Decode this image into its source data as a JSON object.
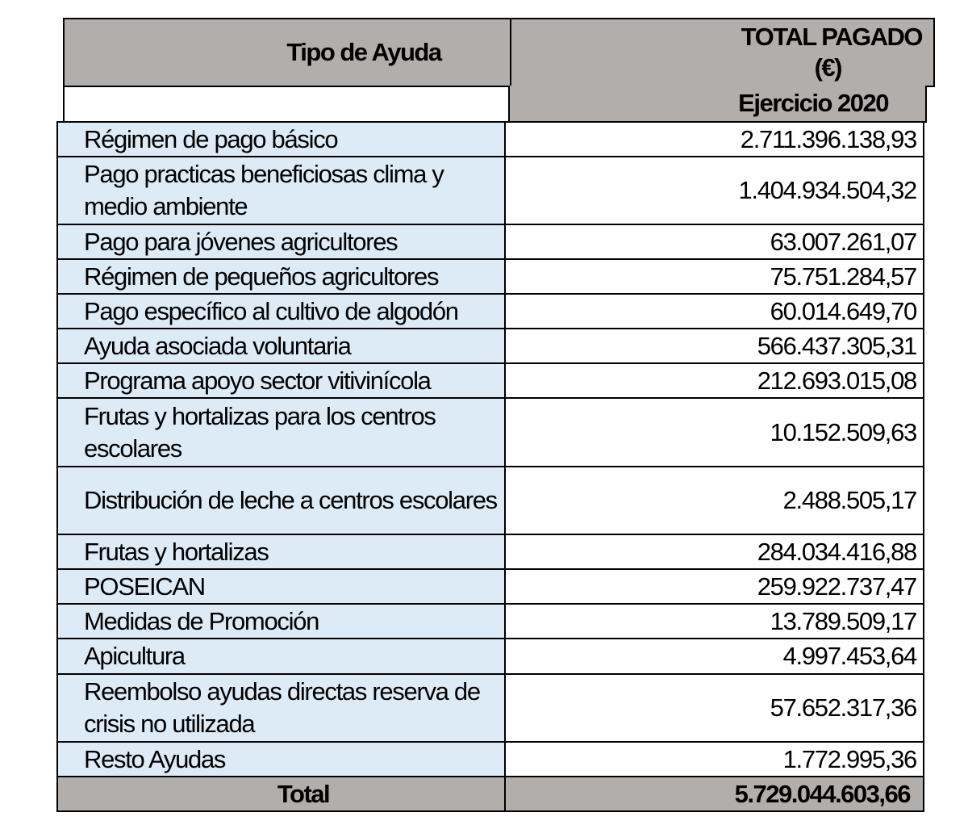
{
  "header": {
    "col1": "Tipo de Ayuda",
    "col2_line1": "TOTAL PAGADO",
    "col2_line2": "(€)",
    "subheader": "Ejercicio 2020"
  },
  "rows": [
    {
      "label": "Régimen de pago básico",
      "value": "2.711.396.138,93"
    },
    {
      "label": "Pago practicas beneficiosas clima y medio ambiente",
      "value": "1.404.934.504,32"
    },
    {
      "label": "Pago para jóvenes agricultores",
      "value": "63.007.261,07"
    },
    {
      "label": "Régimen de pequeños agricultores",
      "value": "75.751.284,57"
    },
    {
      "label": "Pago específico al cultivo de algodón",
      "value": "60.014.649,70"
    },
    {
      "label": "Ayuda asociada voluntaria",
      "value": "566.437.305,31"
    },
    {
      "label": "Programa apoyo sector vitivinícola",
      "value": "212.693.015,08"
    },
    {
      "label": "Frutas y hortalizas para los centros escolares",
      "value": "10.152.509,63"
    },
    {
      "label": "Distribución de leche a centros escolares",
      "value": "2.488.505,17"
    },
    {
      "label": "Frutas y hortalizas",
      "value": "284.034.416,88"
    },
    {
      "label": "POSEICAN",
      "value": "259.922.737,47"
    },
    {
      "label": "Medidas de Promoción",
      "value": "13.789.509,17"
    },
    {
      "label": "Apicultura",
      "value": "4.997.453,64"
    },
    {
      "label": "Reembolso ayudas directas reserva de crisis no utilizada",
      "value": "57.652.317,36"
    },
    {
      "label": "Resto Ayudas",
      "value": "1.772.995,36"
    }
  ],
  "total": {
    "label": "Total",
    "value": "5.729.044.603,66"
  },
  "colors": {
    "header_gray": "#b2aeac",
    "label_blue": "#ddebf7"
  }
}
